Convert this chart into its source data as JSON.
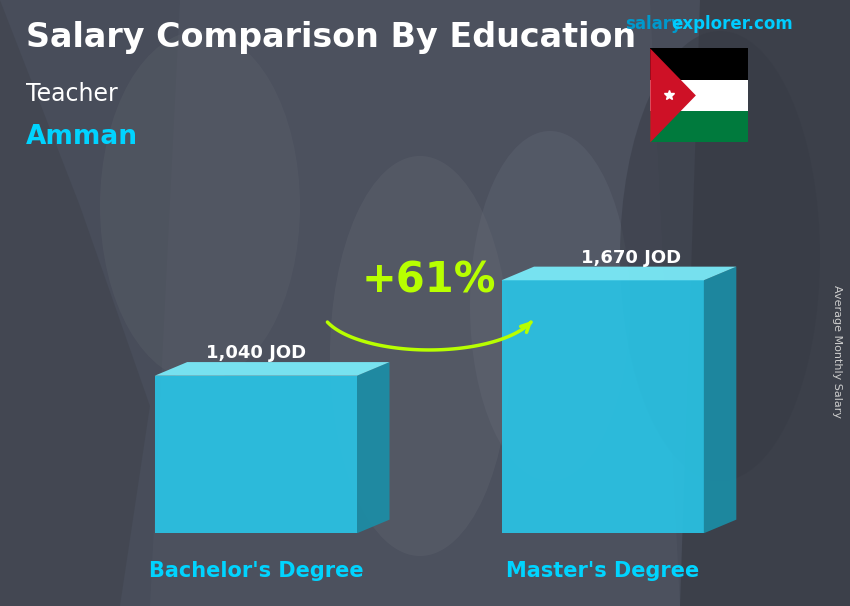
{
  "title_part1": "Salary Comparison By Education",
  "subtitle_job": "Teacher",
  "subtitle_city": "Amman",
  "ylabel": "Average Monthly Salary",
  "brand_salary": "salary",
  "brand_rest": "explorer.com",
  "categories": [
    "Bachelor's Degree",
    "Master's Degree"
  ],
  "values": [
    1040,
    1670
  ],
  "labels": [
    "1,040 JOD",
    "1,670 JOD"
  ],
  "pct_change": "+61%",
  "bar_face_color": "#29c6e8",
  "bar_side_color": "#1a8fa8",
  "bar_top_color": "#7aeaf8",
  "title_color": "#ffffff",
  "subtitle_job_color": "#ffffff",
  "subtitle_city_color": "#00d4ff",
  "label_color": "#ffffff",
  "xlabel_color": "#00d4ff",
  "pct_color": "#b8ff00",
  "arrow_color": "#b8ff00",
  "brand_salary_color": "#0099cc",
  "brand_rest_color": "#00ccff",
  "ylabel_color": "#cccccc",
  "bg_dark": "#4a5060",
  "bg_mid": "#606878",
  "title_fontsize": 24,
  "subtitle_job_fontsize": 17,
  "subtitle_city_fontsize": 19,
  "label_fontsize": 13,
  "xlabel_fontsize": 15,
  "pct_fontsize": 30,
  "brand_fontsize": 12,
  "ylabel_fontsize": 8
}
